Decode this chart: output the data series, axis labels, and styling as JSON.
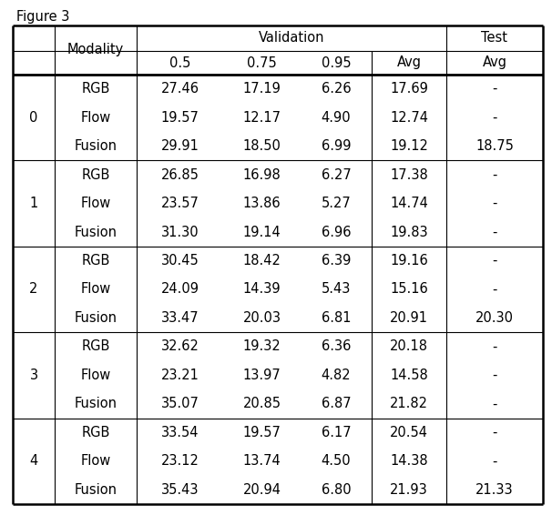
{
  "title_text": "Figure 3",
  "rows": [
    {
      "group": "0",
      "modality": "RGB",
      "v05": "27.46",
      "v075": "17.19",
      "v095": "6.26",
      "avg": "17.69",
      "test": "-"
    },
    {
      "group": "0",
      "modality": "Flow",
      "v05": "19.57",
      "v075": "12.17",
      "v095": "4.90",
      "avg": "12.74",
      "test": "-"
    },
    {
      "group": "0",
      "modality": "Fusion",
      "v05": "29.91",
      "v075": "18.50",
      "v095": "6.99",
      "avg": "19.12",
      "test": "18.75"
    },
    {
      "group": "1",
      "modality": "RGB",
      "v05": "26.85",
      "v075": "16.98",
      "v095": "6.27",
      "avg": "17.38",
      "test": "-"
    },
    {
      "group": "1",
      "modality": "Flow",
      "v05": "23.57",
      "v075": "13.86",
      "v095": "5.27",
      "avg": "14.74",
      "test": "-"
    },
    {
      "group": "1",
      "modality": "Fusion",
      "v05": "31.30",
      "v075": "19.14",
      "v095": "6.96",
      "avg": "19.83",
      "test": "-"
    },
    {
      "group": "2",
      "modality": "RGB",
      "v05": "30.45",
      "v075": "18.42",
      "v095": "6.39",
      "avg": "19.16",
      "test": "-"
    },
    {
      "group": "2",
      "modality": "Flow",
      "v05": "24.09",
      "v075": "14.39",
      "v095": "5.43",
      "avg": "15.16",
      "test": "-"
    },
    {
      "group": "2",
      "modality": "Fusion",
      "v05": "33.47",
      "v075": "20.03",
      "v095": "6.81",
      "avg": "20.91",
      "test": "20.30"
    },
    {
      "group": "3",
      "modality": "RGB",
      "v05": "32.62",
      "v075": "19.32",
      "v095": "6.36",
      "avg": "20.18",
      "test": "-"
    },
    {
      "group": "3",
      "modality": "Flow",
      "v05": "23.21",
      "v075": "13.97",
      "v095": "4.82",
      "avg": "14.58",
      "test": "-"
    },
    {
      "group": "3",
      "modality": "Fusion",
      "v05": "35.07",
      "v075": "20.85",
      "v095": "6.87",
      "avg": "21.82",
      "test": "-"
    },
    {
      "group": "4",
      "modality": "RGB",
      "v05": "33.54",
      "v075": "19.57",
      "v095": "6.17",
      "avg": "20.54",
      "test": "-"
    },
    {
      "group": "4",
      "modality": "Flow",
      "v05": "23.12",
      "v075": "13.74",
      "v095": "4.50",
      "avg": "14.38",
      "test": "-"
    },
    {
      "group": "4",
      "modality": "Fusion",
      "v05": "35.43",
      "v075": "20.94",
      "v095": "6.80",
      "avg": "21.93",
      "test": "21.33"
    }
  ],
  "background_color": "#ffffff",
  "text_color": "#000000",
  "font_size": 10.5
}
